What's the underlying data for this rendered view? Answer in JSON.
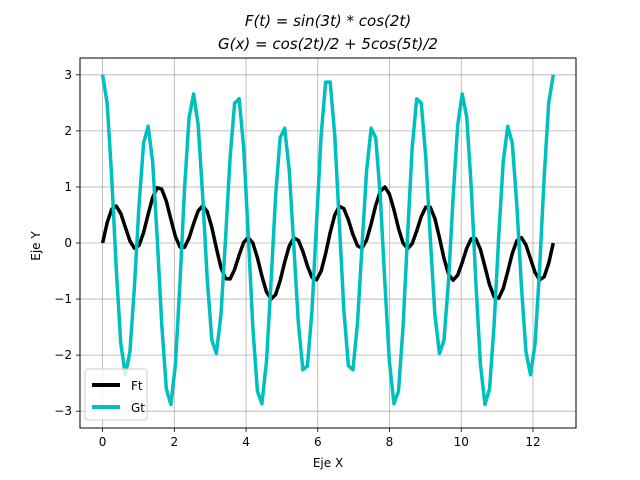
{
  "chart_data": {
    "type": "line",
    "title_lines": [
      "F(t) = sin(3t) * cos(2t)",
      "G(x) = cos(2t)/2 + 5cos(5t)/2"
    ],
    "xlabel": "Eje X",
    "ylabel": "Eje Y",
    "xlim": [
      -0.63,
      13.2
    ],
    "ylim": [
      -3.3,
      3.3
    ],
    "x_ticks": [
      0,
      2,
      4,
      6,
      8,
      10,
      12
    ],
    "y_ticks": [
      -3,
      -2,
      -1,
      0,
      1,
      2,
      3
    ],
    "grid": true,
    "legend_position": "lower-left",
    "series": [
      {
        "name": "Ft",
        "color": "#000000",
        "formula": "sin(3t)*cos(2t)",
        "t_range": [
          0,
          12.566
        ],
        "samples": 100
      },
      {
        "name": "Gt",
        "color": "#00bfbf",
        "formula": "cos(2t)/2 + 5cos(5t)/2",
        "t_range": [
          0,
          12.566
        ],
        "samples": 100
      }
    ]
  }
}
